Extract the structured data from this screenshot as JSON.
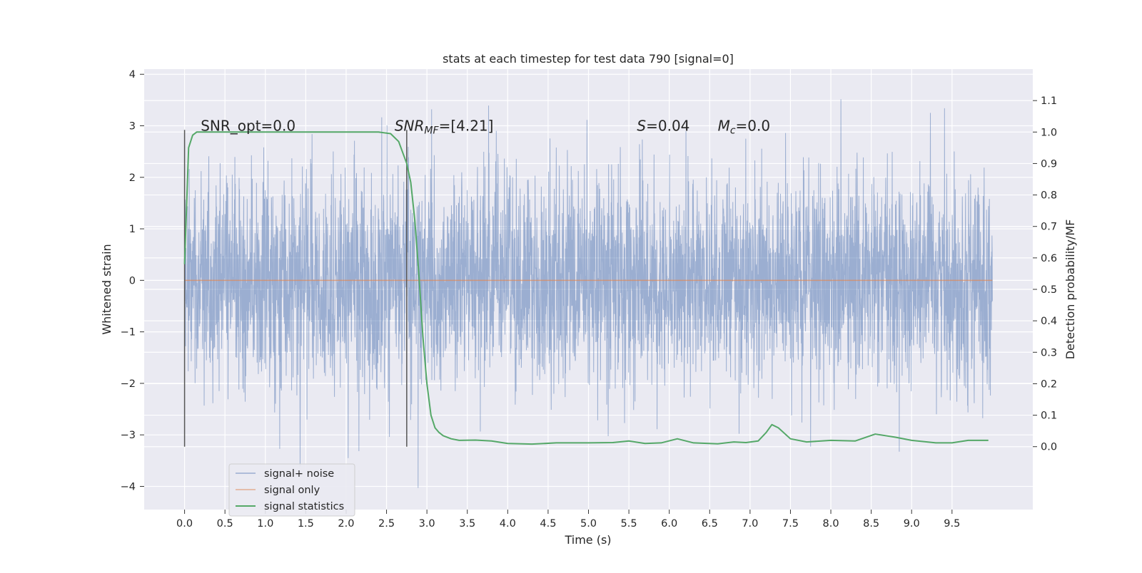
{
  "chart_data": {
    "type": "line",
    "title": "stats at each timestep for test data 790 [signal=0]",
    "xlabel": "Time (s)",
    "ylabel": "Whitened strain",
    "y2label": "Detection probability/MF",
    "xlim": [
      -0.5,
      10.5
    ],
    "ylim": [
      -4.45,
      4.1
    ],
    "y2lim": [
      -0.2,
      1.2
    ],
    "x_ticks": [
      0.0,
      0.5,
      1.0,
      1.5,
      2.0,
      2.5,
      3.0,
      3.5,
      4.0,
      4.5,
      5.0,
      5.5,
      6.0,
      6.5,
      7.0,
      7.5,
      8.0,
      8.5,
      9.0,
      9.5
    ],
    "x_tick_labels": [
      "0.0",
      "0.5",
      "1.0",
      "1.5",
      "2.0",
      "2.5",
      "3.0",
      "3.5",
      "4.0",
      "4.5",
      "5.0",
      "5.5",
      "6.0",
      "6.5",
      "7.0",
      "7.5",
      "8.0",
      "8.5",
      "9.0",
      "9.5"
    ],
    "y_ticks": [
      4,
      3,
      2,
      1,
      0,
      -1,
      -2,
      -3,
      -4
    ],
    "y_tick_labels": [
      "4",
      "3",
      "2",
      "1",
      "0",
      "−1",
      "−2",
      "−3",
      "−4"
    ],
    "y2_ticks": [
      1.1,
      1.0,
      0.9,
      0.8,
      0.7,
      0.6,
      0.5,
      0.4,
      0.3,
      0.2,
      0.1,
      0.0
    ],
    "y2_tick_labels": [
      "1.1",
      "1.0",
      "0.9",
      "0.8",
      "0.7",
      "0.6",
      "0.5",
      "0.4",
      "0.3",
      "0.2",
      "0.1",
      "0.0"
    ],
    "grid": true,
    "legend_position": "lower-left",
    "series": [
      {
        "name": "signal+ noise",
        "color": "#4c72b0",
        "axis": "left",
        "description_values": "whitened noise, roughly Gaussian, time 0.0 to 10.0 s, peaks near 3.7 and -4.0",
        "x_range": [
          0.0,
          10.0
        ],
        "approx_std": 1.0,
        "approx_extremes": [
          -4.03,
          3.73
        ]
      },
      {
        "name": "signal only",
        "color": "#dd8452",
        "axis": "left",
        "x": [
          0.0,
          10.0
        ],
        "values": [
          0.0,
          0.0
        ]
      },
      {
        "name": "signal statistics",
        "color": "#55a868",
        "axis": "right",
        "x": [
          0.0,
          0.05,
          0.1,
          0.15,
          0.2,
          0.3,
          0.5,
          1.0,
          1.5,
          2.0,
          2.4,
          2.55,
          2.65,
          2.75,
          2.8,
          2.85,
          2.9,
          2.95,
          3.0,
          3.05,
          3.1,
          3.15,
          3.2,
          3.3,
          3.4,
          3.6,
          3.8,
          4.0,
          4.3,
          4.6,
          5.0,
          5.3,
          5.5,
          5.7,
          5.9,
          6.1,
          6.3,
          6.6,
          6.8,
          6.95,
          7.1,
          7.2,
          7.27,
          7.35,
          7.5,
          7.7,
          8.0,
          8.3,
          8.55,
          8.8,
          9.0,
          9.3,
          9.5,
          9.7,
          9.95
        ],
        "values": [
          0.58,
          0.95,
          0.99,
          1.0,
          1.0,
          1.0,
          1.0,
          1.0,
          1.0,
          1.0,
          1.0,
          0.995,
          0.97,
          0.9,
          0.84,
          0.72,
          0.55,
          0.35,
          0.2,
          0.1,
          0.06,
          0.045,
          0.035,
          0.025,
          0.02,
          0.021,
          0.018,
          0.01,
          0.008,
          0.012,
          0.012,
          0.013,
          0.018,
          0.01,
          0.012,
          0.025,
          0.012,
          0.009,
          0.015,
          0.013,
          0.018,
          0.045,
          0.07,
          0.06,
          0.025,
          0.015,
          0.02,
          0.018,
          0.04,
          0.03,
          0.02,
          0.012,
          0.012,
          0.02,
          0.02
        ]
      }
    ],
    "vlines": [
      0.0,
      2.75
    ],
    "vline_color": "#555555",
    "annotations": [
      {
        "text": "SNR_opt=0.0",
        "x": 0.2,
        "y": 3.0
      },
      {
        "text_main": "SNR",
        "text_sub": "MF",
        "text_rest": "=[4.21]",
        "x": 2.6,
        "y": 3.0
      },
      {
        "text_main": "S",
        "text_rest": "=0.04",
        "x": 5.6,
        "y": 3.0
      },
      {
        "text_main": "M",
        "text_sub": "c",
        "text_rest": "=0.0",
        "x": 6.6,
        "y": 3.0
      }
    ],
    "legend_entries": [
      "signal+ noise",
      "signal only",
      "signal statistics"
    ]
  }
}
